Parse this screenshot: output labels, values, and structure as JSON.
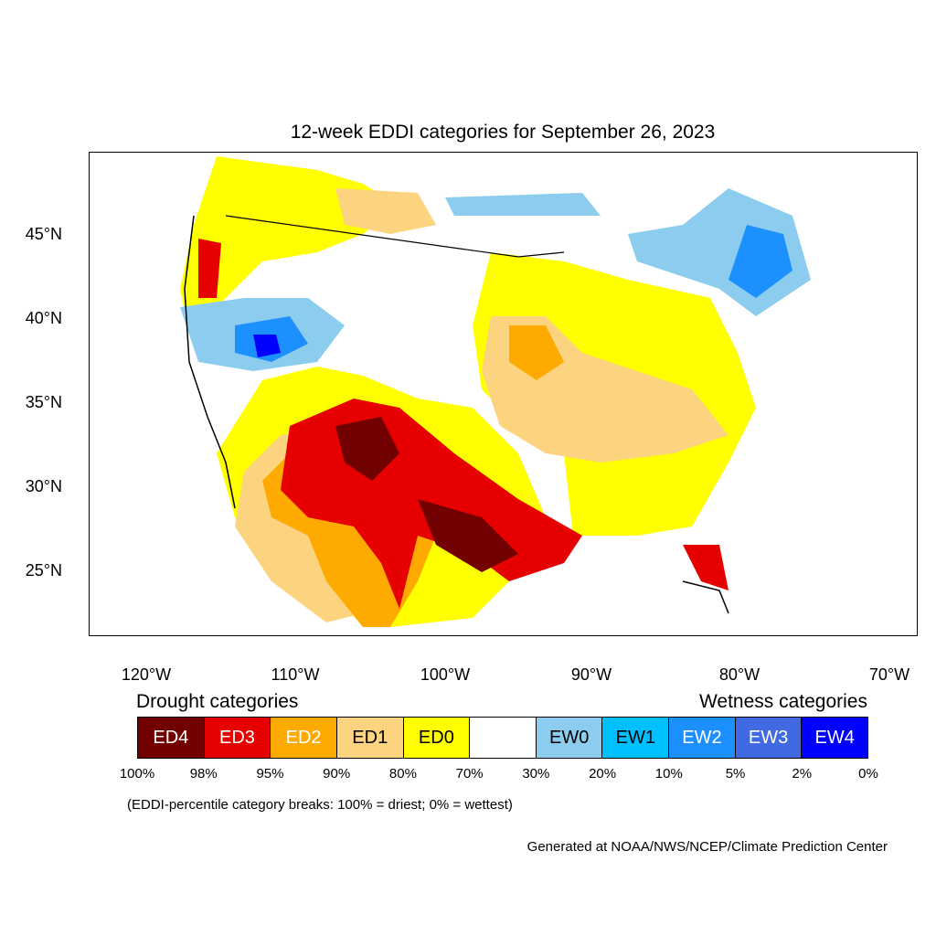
{
  "title": "12-week EDDI categories for September 26, 2023",
  "lat_labels": [
    "45°N",
    "40°N",
    "35°N",
    "30°N",
    "25°N"
  ],
  "lon_labels": [
    "120°W",
    "110°W",
    "100°W",
    "90°W",
    "80°W",
    "70°W"
  ],
  "legend": {
    "drought_heading": "Drought categories",
    "wetness_heading": "Wetness categories",
    "categories": [
      {
        "label": "ED4",
        "color": "#730000",
        "text_color": "#ffffff"
      },
      {
        "label": "ED3",
        "color": "#e60000",
        "text_color": "#ffffff"
      },
      {
        "label": "ED2",
        "color": "#ffaa00",
        "text_color": "#ffffff"
      },
      {
        "label": "ED1",
        "color": "#fcd37f",
        "text_color": "#000000"
      },
      {
        "label": "ED0",
        "color": "#ffff00",
        "text_color": "#000000"
      },
      {
        "label": "",
        "color": "#ffffff",
        "text_color": "#000000"
      },
      {
        "label": "EW0",
        "color": "#8ccdef",
        "text_color": "#000000"
      },
      {
        "label": "EW1",
        "color": "#00bfff",
        "text_color": "#000000"
      },
      {
        "label": "EW2",
        "color": "#1d90ff",
        "text_color": "#ffffff"
      },
      {
        "label": "EW3",
        "color": "#4169e1",
        "text_color": "#ffffff"
      },
      {
        "label": "EW4",
        "color": "#0000ff",
        "text_color": "#ffffff"
      }
    ],
    "breaks": [
      "100%",
      "98%",
      "95%",
      "90%",
      "80%",
      "70%",
      "30%",
      "20%",
      "10%",
      "5%",
      "2%",
      "0%"
    ],
    "note": "(EDDI-percentile category breaks: 100% = driest; 0% = wettest)"
  },
  "credit": "Generated at NOAA/NWS/NCEP/Climate Prediction Center"
}
